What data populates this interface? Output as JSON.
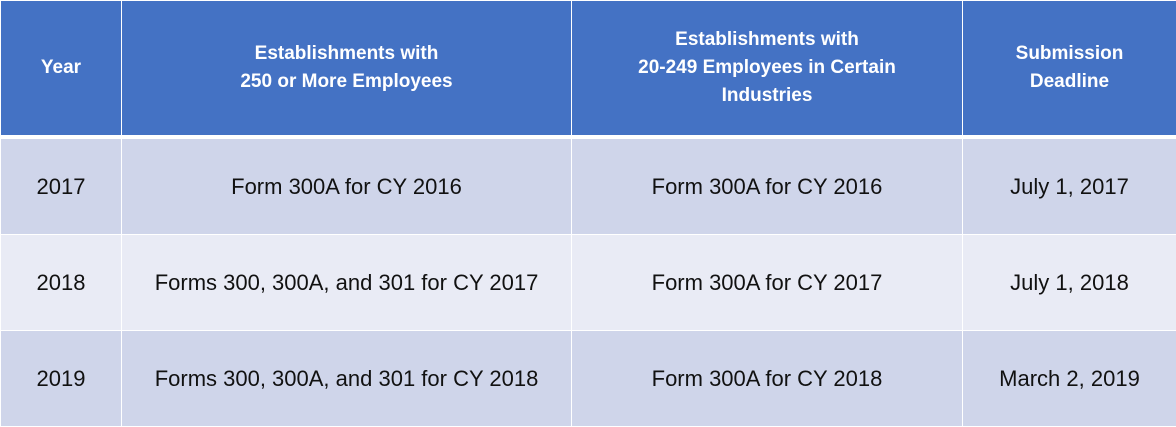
{
  "colors": {
    "header": "#4472C4",
    "row_odd": "#CFD5EA",
    "row_even": "#E9EBF5"
  },
  "headers": [
    [
      "Year"
    ],
    [
      "Establishments with",
      "250 or More Employees"
    ],
    [
      "Establishments with",
      "20-249  Employees in Certain",
      "Industries"
    ],
    [
      "Submission",
      "Deadline"
    ]
  ],
  "rows": [
    [
      "2017",
      "Form 300A for CY 2016",
      "Form 300A for CY 2016",
      "July 1, 2017"
    ],
    [
      "2018",
      "Forms 300, 300A, and 301 for CY 2017",
      "Form 300A for CY 2017",
      "July 1, 2018"
    ],
    [
      "2019",
      "Forms 300, 300A, and 301 for CY 2018",
      "Form 300A for CY 2018",
      "March 2, 2019"
    ]
  ]
}
